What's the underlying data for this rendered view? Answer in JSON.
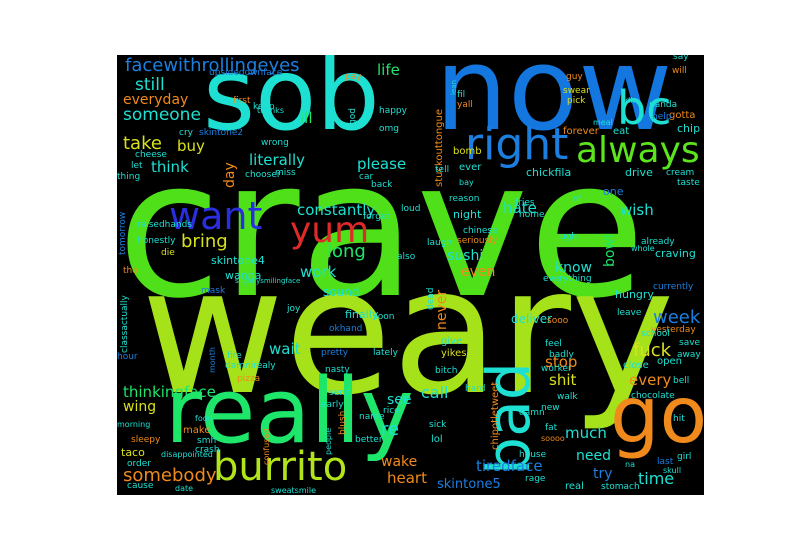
{
  "words": [
    {
      "text": "crave",
      "color": "#4fe01a"
    },
    {
      "text": "weary",
      "color": "#a6e21a"
    },
    {
      "text": "now",
      "color": "#1477e0"
    },
    {
      "text": "sob",
      "color": "#1ee0d2"
    },
    {
      "text": "really",
      "color": "#1ee66a"
    },
    {
      "text": "go",
      "color": "#f08a1c"
    },
    {
      "text": "burrito",
      "color": "#b2e41c"
    },
    {
      "text": "bad",
      "color": "#1ee0d2"
    },
    {
      "text": "right",
      "color": "#1c7fe0"
    },
    {
      "text": "always",
      "color": "#5ce41c"
    },
    {
      "text": "want",
      "color": "#2a2ee0"
    },
    {
      "text": "yum",
      "color": "#e02a2a"
    },
    {
      "text": "facewithrollingeyes",
      "color": "#1c7fe0"
    },
    {
      "text": "bc",
      "color": "#1ee0d2"
    },
    {
      "text": "still",
      "color": "#1ee0d2"
    },
    {
      "text": "someone",
      "color": "#1ee0d2"
    },
    {
      "text": "everyday",
      "color": "#f08a1c"
    },
    {
      "text": "life",
      "color": "#1ee66a"
    },
    {
      "text": "ill",
      "color": "#1ee66a"
    },
    {
      "text": "take",
      "color": "#d9e01c"
    },
    {
      "text": "buy",
      "color": "#d9e01c"
    },
    {
      "text": "think",
      "color": "#1ee0d2"
    },
    {
      "text": "literally",
      "color": "#1ee0d2"
    },
    {
      "text": "please",
      "color": "#1ee0d2"
    },
    {
      "text": "day",
      "color": "#f08a1c"
    },
    {
      "text": "constantly",
      "color": "#1ee0d2"
    },
    {
      "text": "bring",
      "color": "#d9e01c"
    },
    {
      "text": "long",
      "color": "#1ee66a"
    },
    {
      "text": "work",
      "color": "#1ee0d2"
    },
    {
      "text": "hate",
      "color": "#1ee0d2"
    },
    {
      "text": "sushi",
      "color": "#1ee0d2"
    },
    {
      "text": "even",
      "color": "#f08a1c"
    },
    {
      "text": "know",
      "color": "#1ee0d2"
    },
    {
      "text": "bowl",
      "color": "#1ee66a"
    },
    {
      "text": "wish",
      "color": "#1ee0d2"
    },
    {
      "text": "week",
      "color": "#1c7fe0"
    },
    {
      "text": "fuck",
      "color": "#d9e01c"
    },
    {
      "text": "never",
      "color": "#f08a1c"
    },
    {
      "text": "finally",
      "color": "#1ee0d2"
    },
    {
      "text": "deliver",
      "color": "#1ee0d2"
    },
    {
      "text": "sound",
      "color": "#1ee0d2"
    },
    {
      "text": "wait",
      "color": "#1ee0d2"
    },
    {
      "text": "thinkingface",
      "color": "#1ee66a"
    },
    {
      "text": "wing",
      "color": "#d9e01c"
    },
    {
      "text": "see",
      "color": "#1ee0d2"
    },
    {
      "text": "call",
      "color": "#1ee0d2"
    },
    {
      "text": "stop",
      "color": "#f08a1c"
    },
    {
      "text": "shit",
      "color": "#d9e01c"
    },
    {
      "text": "every",
      "color": "#f08a1c"
    },
    {
      "text": "much",
      "color": "#1ee0d2"
    },
    {
      "text": "re",
      "color": "#1ee0d2"
    },
    {
      "text": "wake",
      "color": "#f08a1c"
    },
    {
      "text": "heart",
      "color": "#f08a1c"
    },
    {
      "text": "tiredface",
      "color": "#1c7fe0"
    },
    {
      "text": "try",
      "color": "#1c7fe0"
    },
    {
      "text": "time",
      "color": "#1ee0d2"
    },
    {
      "text": "somebody",
      "color": "#f08a1c"
    },
    {
      "text": "skintone5",
      "color": "#1c7fe0"
    },
    {
      "text": "need",
      "color": "#1ee0d2"
    },
    {
      "text": "hungry",
      "color": "#1ee0d2"
    },
    {
      "text": "drive",
      "color": "#1ee0d2"
    },
    {
      "text": "chip",
      "color": "#1ee0d2"
    },
    {
      "text": "eat",
      "color": "#1ee0d2"
    },
    {
      "text": "craving",
      "color": "#1ee0d2"
    },
    {
      "text": "one",
      "color": "#1c7fe0"
    },
    {
      "text": "chickfila",
      "color": "#1ee0d2"
    },
    {
      "text": "ever",
      "color": "#1ee0d2"
    },
    {
      "text": "forever",
      "color": "#f08a1c"
    },
    {
      "text": "gotta",
      "color": "#f08a1c"
    },
    {
      "text": "stuckouttongue",
      "color": "#f08a1c"
    },
    {
      "text": "bomb",
      "color": "#d9e01c"
    },
    {
      "text": "night",
      "color": "#1ee0d2"
    },
    {
      "text": "skintone4",
      "color": "#1ee0d2"
    },
    {
      "text": "wanna",
      "color": "#1ee0d2"
    },
    {
      "text": "fire",
      "color": "#1ee0d2"
    },
    {
      "text": "pizza",
      "color": "#f08a1c"
    },
    {
      "text": "make",
      "color": "#f08a1c"
    },
    {
      "text": "taco",
      "color": "#d9e01c"
    },
    {
      "text": "smh",
      "color": "#1ee0d2"
    },
    {
      "text": "damnirealy",
      "color": "#1ee0d2"
    },
    {
      "text": "chipotletweet",
      "color": "#f08a1c"
    },
    {
      "text": "lol",
      "color": "#1ee0d2"
    },
    {
      "text": "yikes",
      "color": "#d9e01c"
    },
    {
      "text": "give",
      "color": "#1ee0d2"
    },
    {
      "text": "close",
      "color": "#1ee0d2"
    },
    {
      "text": "open",
      "color": "#1ee0d2"
    },
    {
      "text": "sooo",
      "color": "#f08a1c"
    },
    {
      "text": "upsidedownface",
      "color": "#1c7fe0"
    },
    {
      "text": "skintone2",
      "color": "#1c7fe0"
    },
    {
      "text": "first",
      "color": "#f08a1c"
    },
    {
      "text": "keep",
      "color": "#1ee0d2"
    },
    {
      "text": "pay",
      "color": "#f08a1c"
    },
    {
      "text": "happy",
      "color": "#1ee0d2"
    },
    {
      "text": "omg",
      "color": "#1ee0d2"
    },
    {
      "text": "god",
      "color": "#1ee0d2"
    },
    {
      "text": "fil",
      "color": "#1ee0d2"
    },
    {
      "text": "yall",
      "color": "#f08a1c"
    },
    {
      "text": "guy",
      "color": "#f08a1c"
    },
    {
      "text": "swear",
      "color": "#d9e01c"
    },
    {
      "text": "pick",
      "color": "#d9e01c"
    },
    {
      "text": "say",
      "color": "#1ee0d2"
    },
    {
      "text": "will",
      "color": "#f08a1c"
    },
    {
      "text": "panda",
      "color": "#1ee0d2"
    },
    {
      "text": "help",
      "color": "#1c7fe0"
    },
    {
      "text": "cream",
      "color": "#1ee0d2"
    },
    {
      "text": "taste",
      "color": "#1ee0d2"
    },
    {
      "text": "cry",
      "color": "#1ee0d2"
    },
    {
      "text": "cheese",
      "color": "#1ee0d2"
    },
    {
      "text": "let",
      "color": "#1ee0d2"
    },
    {
      "text": "thing",
      "color": "#1ee0d2"
    },
    {
      "text": "wrong",
      "color": "#1ee0d2"
    },
    {
      "text": "chooser",
      "color": "#1ee0d2"
    },
    {
      "text": "miss",
      "color": "#1ee0d2"
    },
    {
      "text": "car",
      "color": "#1ee0d2"
    },
    {
      "text": "back",
      "color": "#1ee0d2"
    },
    {
      "text": "forget",
      "color": "#1ee0d2"
    },
    {
      "text": "loud",
      "color": "#1ee0d2"
    },
    {
      "text": "tell",
      "color": "#1ee0d2"
    },
    {
      "text": "reason",
      "color": "#1ee0d2"
    },
    {
      "text": "fries",
      "color": "#1ee0d2"
    },
    {
      "text": "home",
      "color": "#1ee0d2"
    },
    {
      "text": "chinese",
      "color": "#1ee0d2"
    },
    {
      "text": "seriously",
      "color": "#f08a1c"
    },
    {
      "text": "laugh",
      "color": "#1ee0d2"
    },
    {
      "text": "ugh",
      "color": "#1ee0d2"
    },
    {
      "text": "already",
      "color": "#1ee0d2"
    },
    {
      "text": "tomorrow",
      "color": "#1c7fe0"
    },
    {
      "text": "raisedhands",
      "color": "#1ee0d2"
    },
    {
      "text": "honestly",
      "color": "#1ee0d2"
    },
    {
      "text": "die",
      "color": "#d9e01c"
    },
    {
      "text": "tho",
      "color": "#f08a1c"
    },
    {
      "text": "also",
      "color": "#1ee0d2"
    },
    {
      "text": "everything",
      "color": "#1ee0d2"
    },
    {
      "text": "mask",
      "color": "#1c7fe0"
    },
    {
      "text": "slightlysmilingface",
      "color": "#1ee0d2"
    },
    {
      "text": "classactually",
      "color": "#1ee0d2"
    },
    {
      "text": "joy",
      "color": "#1ee0d2"
    },
    {
      "text": "okhand",
      "color": "#1c7fe0"
    },
    {
      "text": "soon",
      "color": "#1ee0d2"
    },
    {
      "text": "dead",
      "color": "#1ee0d2"
    },
    {
      "text": "leave",
      "color": "#1ee0d2"
    },
    {
      "text": "yesterday",
      "color": "#f08a1c"
    },
    {
      "text": "currently",
      "color": "#1c7fe0"
    },
    {
      "text": "school",
      "color": "#1ee0d2"
    },
    {
      "text": "save",
      "color": "#1ee0d2"
    },
    {
      "text": "feel",
      "color": "#1ee0d2"
    },
    {
      "text": "worker",
      "color": "#1ee0d2"
    },
    {
      "text": "badly",
      "color": "#1ee0d2"
    },
    {
      "text": "month",
      "color": "#1c7fe0"
    },
    {
      "text": "pretty",
      "color": "#1c7fe0"
    },
    {
      "text": "nasty",
      "color": "#1ee0d2"
    },
    {
      "text": "lately",
      "color": "#1ee0d2"
    },
    {
      "text": "bitch",
      "color": "#1ee0d2"
    },
    {
      "text": "hour",
      "color": "#1c7fe0"
    },
    {
      "text": "food",
      "color": "#1ee0d2"
    },
    {
      "text": "morning",
      "color": "#1ee0d2"
    },
    {
      "text": "sleepy",
      "color": "#f08a1c"
    },
    {
      "text": "disappointed",
      "color": "#1ee0d2"
    },
    {
      "text": "order",
      "color": "#1ee0d2"
    },
    {
      "text": "cause",
      "color": "#1ee0d2"
    },
    {
      "text": "date",
      "color": "#1ee0d2"
    },
    {
      "text": "crash",
      "color": "#1ee0d2"
    },
    {
      "text": "confused",
      "color": "#f08a1c"
    },
    {
      "text": "early",
      "color": "#1ee0d2"
    },
    {
      "text": "name",
      "color": "#1ee0d2"
    },
    {
      "text": "rice",
      "color": "#1ee0d2"
    },
    {
      "text": "sick",
      "color": "#1ee0d2"
    },
    {
      "text": "hard",
      "color": "#1ee0d2"
    },
    {
      "text": "send",
      "color": "#1ee0d2"
    },
    {
      "text": "blush",
      "color": "#f08a1c"
    },
    {
      "text": "better",
      "color": "#1ee0d2"
    },
    {
      "text": "people",
      "color": "#1ee0d2"
    },
    {
      "text": "house",
      "color": "#1ee0d2"
    },
    {
      "text": "rage",
      "color": "#1ee0d2"
    },
    {
      "text": "real",
      "color": "#1ee0d2"
    },
    {
      "text": "stomach",
      "color": "#1ee0d2"
    },
    {
      "text": "new",
      "color": "#1ee0d2"
    },
    {
      "text": "walk",
      "color": "#1ee0d2"
    },
    {
      "text": "damn",
      "color": "#1ee0d2"
    },
    {
      "text": "fat",
      "color": "#1ee0d2"
    },
    {
      "text": "soooo",
      "color": "#f08a1c"
    },
    {
      "text": "chocolate",
      "color": "#1ee0d2"
    },
    {
      "text": "bell",
      "color": "#1ee0d2"
    },
    {
      "text": "away",
      "color": "#1ee0d2"
    },
    {
      "text": "hit",
      "color": "#1ee0d2"
    },
    {
      "text": "girl",
      "color": "#1ee0d2"
    },
    {
      "text": "last",
      "color": "#1c7fe0"
    },
    {
      "text": "skull",
      "color": "#1ee0d2"
    },
    {
      "text": "na",
      "color": "#1ee0d2"
    },
    {
      "text": "sweatsmile",
      "color": "#1ee0d2"
    },
    {
      "text": "thanks",
      "color": "#1ee0d2"
    },
    {
      "text": "meal",
      "color": "#1ee0d2"
    },
    {
      "text": "idk",
      "color": "#1ee0d2"
    },
    {
      "text": "bay",
      "color": "#1ee0d2"
    },
    {
      "text": "nf",
      "color": "#1ee0d2"
    },
    {
      "text": "whole",
      "color": "#1ee0d2"
    },
    {
      "text": "lean",
      "color": "#1ee0d2"
    }
  ]
}
